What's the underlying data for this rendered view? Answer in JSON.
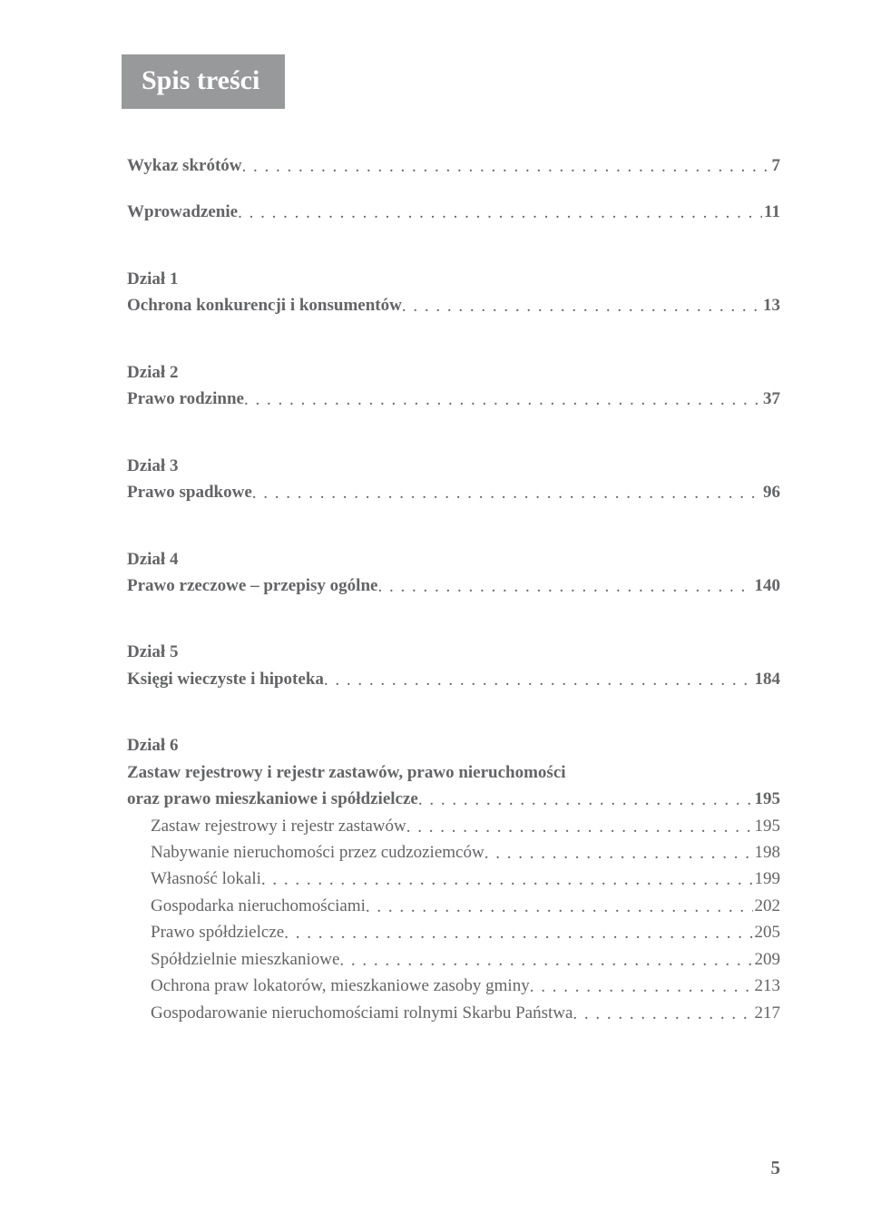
{
  "title": "Spis treści",
  "text_color": "#636466",
  "title_bg": "#98999b",
  "title_fg": "#ffffff",
  "background": "#ffffff",
  "page_number": "5",
  "entries": [
    {
      "heading": null,
      "label": "Wykaz skrótów",
      "page": "7",
      "bold": true,
      "indent": 0,
      "gap_before": 0
    },
    {
      "heading": null,
      "label": "Wprowadzenie",
      "page": "11",
      "bold": true,
      "indent": 0,
      "gap_before": 1
    },
    {
      "heading": "Dział 1",
      "label": "Ochrona konkurencji i konsumentów",
      "page": "13",
      "bold": true,
      "indent": 0,
      "gap_before": 1
    },
    {
      "heading": "Dział 2",
      "label": "Prawo rodzinne",
      "page": "37",
      "bold": true,
      "indent": 0,
      "gap_before": 1
    },
    {
      "heading": "Dział 3",
      "label": "Prawo spadkowe",
      "page": "96",
      "bold": true,
      "indent": 0,
      "gap_before": 1
    },
    {
      "heading": "Dział 4",
      "label": "Prawo rzeczowe – przepisy ogólne",
      "page": "140",
      "bold": true,
      "indent": 0,
      "gap_before": 1
    },
    {
      "heading": "Dział 5",
      "label": "Księgi wieczyste i hipoteka",
      "page": "184",
      "bold": true,
      "indent": 0,
      "gap_before": 1
    },
    {
      "heading": "Dział 6",
      "label": "Zastaw rejestrowy i rejestr zastawów, prawo nieruchomości\noraz prawo mieszkaniowe i spółdzielcze",
      "page": "195",
      "bold": true,
      "indent": 0,
      "gap_before": 1
    },
    {
      "heading": null,
      "label": "Zastaw rejestrowy i rejestr zastawów",
      "page": "195",
      "bold": false,
      "indent": 1,
      "gap_before": 0
    },
    {
      "heading": null,
      "label": "Nabywanie nieruchomości przez cudzoziemców",
      "page": "198",
      "bold": false,
      "indent": 1,
      "gap_before": 0
    },
    {
      "heading": null,
      "label": "Własność lokali",
      "page": "199",
      "bold": false,
      "indent": 1,
      "gap_before": 0
    },
    {
      "heading": null,
      "label": "Gospodarka nieruchomościami",
      "page": "202",
      "bold": false,
      "indent": 1,
      "gap_before": 0
    },
    {
      "heading": null,
      "label": "Prawo spółdzielcze",
      "page": "205",
      "bold": false,
      "indent": 1,
      "gap_before": 0
    },
    {
      "heading": null,
      "label": "Spółdzielnie mieszkaniowe",
      "page": "209",
      "bold": false,
      "indent": 1,
      "gap_before": 0
    },
    {
      "heading": null,
      "label": "Ochrona praw lokatorów, mieszkaniowe zasoby gminy",
      "page": "213",
      "bold": false,
      "indent": 1,
      "gap_before": 0
    },
    {
      "heading": null,
      "label": "Gospodarowanie nieruchomościami rolnymi Skarbu Państwa",
      "page": "217",
      "bold": false,
      "indent": 1,
      "gap_before": 0
    }
  ]
}
